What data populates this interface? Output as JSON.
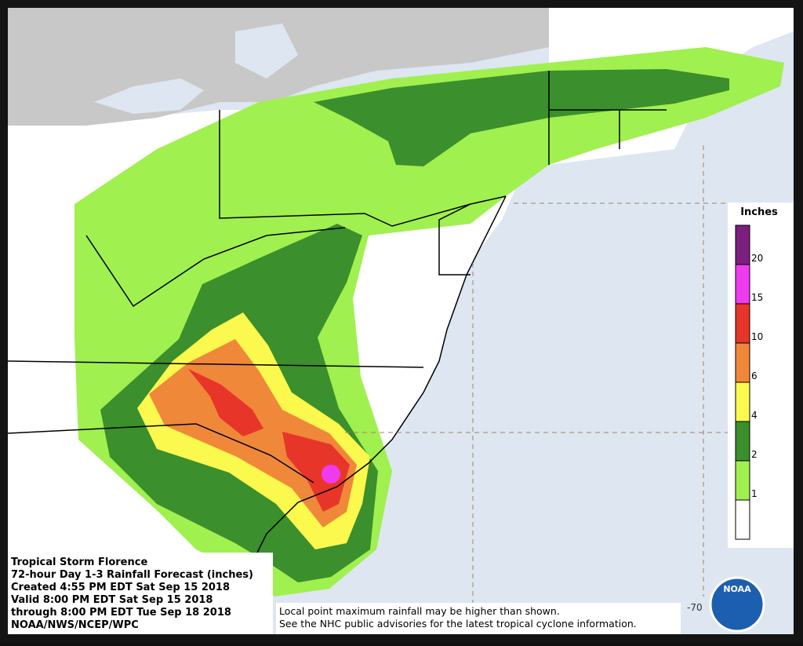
{
  "map": {
    "title_lines": [
      "Tropical Storm Florence",
      "72-hour Day 1-3 Rainfall Forecast (inches)",
      "Created 4:55 PM EDT Sat Sep 15 2018",
      "Valid 8:00 PM EDT Sat Sep 15 2018",
      "through 8:00 PM EDT Tue Sep 18 2018",
      "NOAA/NWS/NCEP/WPC"
    ],
    "notes": [
      "Local point maximum rainfall may be higher than shown.",
      "See the NHC public advisories for the latest tropical cyclone information."
    ],
    "longitude_label": "-70",
    "logo": "NOAA",
    "legend": {
      "title": "Inches",
      "labels": [
        20,
        15,
        10,
        6,
        4,
        2,
        1
      ],
      "colors": [
        "#7d1f80",
        "#ee3bee",
        "#e8352a",
        "#f0883a",
        "#fbf84e",
        "#3b8f2c",
        "#a0f04f",
        "#ffffff"
      ]
    }
  }
}
